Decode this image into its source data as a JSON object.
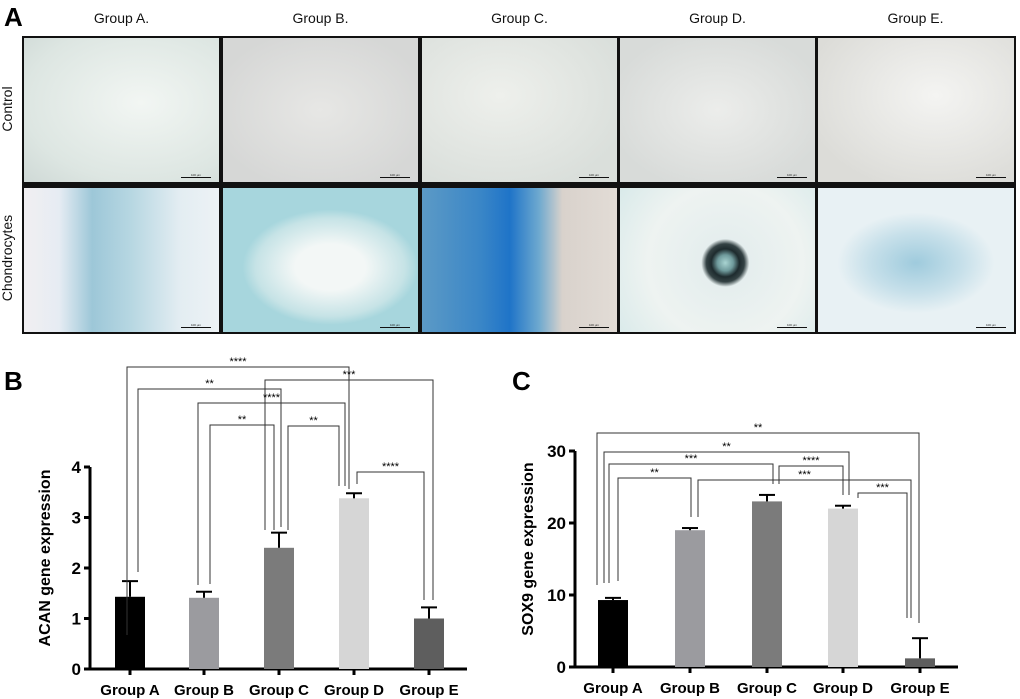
{
  "panelA": {
    "letter": "A",
    "columns": [
      "Group A.",
      "Group B.",
      "Group C.",
      "Group D.",
      "Group E."
    ],
    "rows": [
      "Control",
      "Chondrocytes"
    ],
    "scale_bar_label": "100 μm"
  },
  "chart_data": [
    {
      "type": "bar",
      "panel": "B",
      "categories": [
        "Group A",
        "Group B",
        "Group C",
        "Group D",
        "Group E"
      ],
      "values": [
        1.43,
        1.41,
        2.4,
        3.38,
        1.0
      ],
      "errors": [
        0.31,
        0.12,
        0.3,
        0.1,
        0.22
      ],
      "ylabel": "ACAN  gene expression",
      "xlabel": "",
      "ylim": [
        0,
        4
      ],
      "yticks": [
        "0",
        "1",
        "2",
        "3",
        "4"
      ],
      "colors": [
        "#000000",
        "#9b9b9f",
        "#7b7b7b",
        "#d6d6d6",
        "#5e5e5e"
      ],
      "significance": [
        {
          "from": 0,
          "to": 3,
          "label": "****"
        },
        {
          "from": 2,
          "to": 4,
          "label": "***"
        },
        {
          "from": 0,
          "to": 2,
          "label": "**"
        },
        {
          "from": 1,
          "to": 3,
          "label": "****"
        },
        {
          "from": 1,
          "to": 2,
          "label": "**"
        },
        {
          "from": 2,
          "to": 3,
          "label": "**"
        },
        {
          "from": 3,
          "to": 4,
          "label": "****"
        }
      ]
    },
    {
      "type": "bar",
      "panel": "C",
      "categories": [
        "Group A",
        "Group B",
        "Group C",
        "Group D",
        "Group E"
      ],
      "values": [
        9.3,
        19.0,
        23.0,
        22.0,
        1.2
      ],
      "errors": [
        0.3,
        0.3,
        0.9,
        0.4,
        2.8
      ],
      "ylabel": "SOX9 gene expression",
      "xlabel": "",
      "ylim": [
        0,
        30
      ],
      "yticks": [
        "0",
        "10",
        "20",
        "30"
      ],
      "colors": [
        "#000000",
        "#9b9b9f",
        "#7b7b7b",
        "#d6d6d6",
        "#5e5e5e"
      ],
      "significance": [
        {
          "from": 0,
          "to": 4,
          "label": "**"
        },
        {
          "from": 0,
          "to": 3,
          "label": "**"
        },
        {
          "from": 0,
          "to": 2,
          "label": "***"
        },
        {
          "from": 2,
          "to": 3,
          "label": "****"
        },
        {
          "from": 0,
          "to": 1,
          "label": "**"
        },
        {
          "from": 1,
          "to": 4,
          "label": "***"
        },
        {
          "from": 3,
          "to": 4,
          "label": "***"
        }
      ]
    }
  ]
}
